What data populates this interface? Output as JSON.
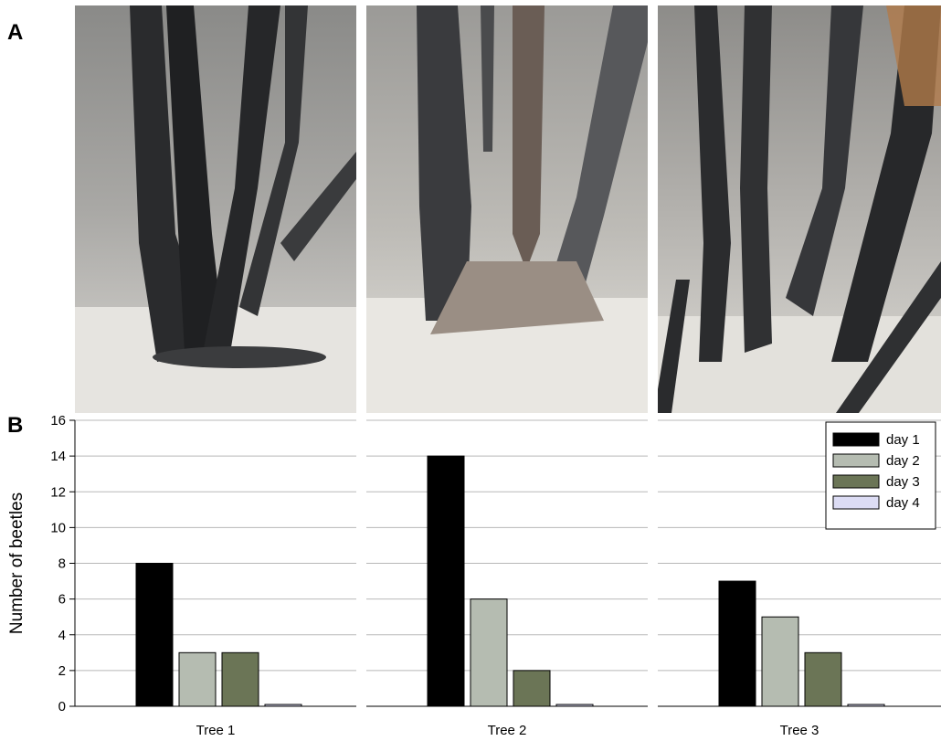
{
  "panels": {
    "a": "A",
    "b": "B"
  },
  "photos": [
    {
      "name": "tree-1-photo"
    },
    {
      "name": "tree-2-photo"
    },
    {
      "name": "tree-3-photo"
    }
  ],
  "chart_data": {
    "type": "bar",
    "title": "",
    "xlabel": "",
    "ylabel": "Number of beetles",
    "ylim": [
      0,
      16
    ],
    "yticks": [
      0,
      2,
      4,
      6,
      8,
      10,
      12,
      14,
      16
    ],
    "grid": true,
    "legend_position": "top-right",
    "categories": [
      "Tree 1",
      "Tree 2",
      "Tree 3"
    ],
    "series": [
      {
        "name": "day 1",
        "color": "#000000",
        "values": [
          8,
          14,
          7
        ]
      },
      {
        "name": "day 2",
        "color": "#b5bcb1",
        "values": [
          3,
          6,
          5
        ]
      },
      {
        "name": "day 3",
        "color": "#6b7556",
        "values": [
          3,
          2,
          3
        ]
      },
      {
        "name": "day 4",
        "color": "#dcdcf4",
        "values": [
          0.1,
          0.1,
          0.1
        ]
      }
    ]
  }
}
